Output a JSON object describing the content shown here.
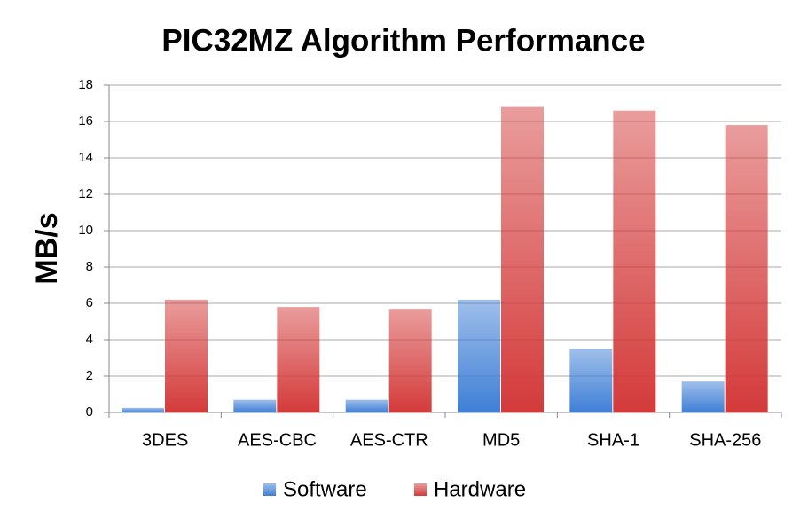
{
  "chart_data": {
    "type": "bar",
    "title": "PIC32MZ Algorithm Performance",
    "y_label": "MB/s",
    "categories": [
      "3DES",
      "AES-CBC",
      "AES-CTR",
      "MD5",
      "SHA-1",
      "SHA-256"
    ],
    "series": [
      {
        "name": "Software",
        "color": "#3f7fd6",
        "values": [
          0.25,
          0.7,
          0.7,
          6.2,
          3.5,
          1.7
        ]
      },
      {
        "name": "Hardware",
        "color": "#d43a3a",
        "values": [
          6.2,
          5.8,
          5.7,
          16.8,
          16.6,
          15.8
        ]
      }
    ],
    "ylim": [
      0,
      18
    ],
    "yticks": [
      0,
      2,
      4,
      6,
      8,
      10,
      12,
      14,
      16,
      18
    ],
    "grid": true,
    "legend": "bottom"
  }
}
